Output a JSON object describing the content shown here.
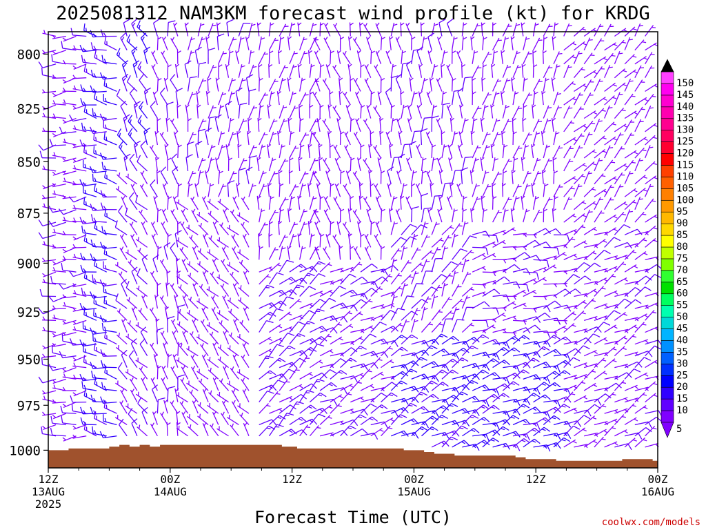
{
  "title": "2025081312 NAM3KM forecast wind profile (kt) for KRDG",
  "xlabel": "Forecast Time (UTC)",
  "watermark": "coolwx.com/models",
  "chart_data": {
    "type": "wind_barbs",
    "title": "2025081312 NAM3KM forecast wind profile (kt) for KRDG",
    "xlabel": "Forecast Time (UTC)",
    "ylabel": "",
    "x_range_hours": [
      0,
      60
    ],
    "y_axis": {
      "ticks": [
        800,
        825,
        850,
        875,
        900,
        925,
        950,
        975,
        1000
      ],
      "range": [
        790,
        1010
      ],
      "scale": "log-pressure"
    },
    "x_ticks": [
      {
        "hour": 0,
        "lines": [
          "12Z",
          "13AUG",
          "2025"
        ]
      },
      {
        "hour": 12,
        "lines": [
          "00Z",
          "14AUG"
        ]
      },
      {
        "hour": 24,
        "lines": [
          "12Z"
        ]
      },
      {
        "hour": 36,
        "lines": [
          "00Z",
          "15AUG"
        ]
      },
      {
        "hour": 48,
        "lines": [
          "12Z"
        ]
      },
      {
        "hour": 60,
        "lines": [
          "00Z",
          "16AUG"
        ]
      }
    ],
    "colorbar": {
      "unit": "kt",
      "levels": [
        5,
        10,
        15,
        20,
        25,
        30,
        35,
        40,
        45,
        50,
        55,
        60,
        65,
        70,
        75,
        80,
        85,
        90,
        95,
        100,
        105,
        110,
        115,
        120,
        125,
        130,
        135,
        140,
        145,
        150
      ],
      "colors": [
        "#8000ff",
        "#6000ff",
        "#3000ff",
        "#0000ff",
        "#0030ff",
        "#0060ff",
        "#0090ff",
        "#00b4ff",
        "#00d8d8",
        "#00ffb0",
        "#00ff60",
        "#00e000",
        "#30ff30",
        "#80ff00",
        "#c0ff00",
        "#ffff00",
        "#ffd800",
        "#ffb800",
        "#ff9900",
        "#ff8000",
        "#ff6000",
        "#ff4000",
        "#ff0000",
        "#ff0030",
        "#ff0060",
        "#ff0090",
        "#ff00b0",
        "#ff00d0",
        "#ff00f0",
        "#ff40ff"
      ],
      "extend": "both"
    },
    "terrain_color": "#a0522d",
    "surface_pressure": [
      {
        "hour": 0,
        "p": 1000
      },
      {
        "hour": 2,
        "p": 999
      },
      {
        "hour": 6,
        "p": 998
      },
      {
        "hour": 7,
        "p": 997
      },
      {
        "hour": 8,
        "p": 998
      },
      {
        "hour": 9,
        "p": 997
      },
      {
        "hour": 10,
        "p": 998
      },
      {
        "hour": 11,
        "p": 997
      },
      {
        "hour": 22,
        "p": 997
      },
      {
        "hour": 23,
        "p": 998
      },
      {
        "hour": 24.5,
        "p": 999
      },
      {
        "hour": 34,
        "p": 999
      },
      {
        "hour": 35,
        "p": 1000
      },
      {
        "hour": 37,
        "p": 1001
      },
      {
        "hour": 38,
        "p": 1002
      },
      {
        "hour": 40,
        "p": 1003
      },
      {
        "hour": 45,
        "p": 1003
      },
      {
        "hour": 46,
        "p": 1004
      },
      {
        "hour": 47,
        "p": 1005
      },
      {
        "hour": 49,
        "p": 1005
      },
      {
        "hour": 50,
        "p": 1006
      },
      {
        "hour": 56,
        "p": 1006
      },
      {
        "hour": 56.5,
        "p": 1005
      },
      {
        "hour": 59,
        "p": 1005
      },
      {
        "hour": 59.5,
        "p": 1006
      },
      {
        "hour": 60,
        "p": 1006
      }
    ],
    "wind_regimes": [
      {
        "hours": [
          0,
          4
        ],
        "p_range": [
          790,
          1000
        ],
        "dir_deg": 265,
        "speed_kt": 8
      },
      {
        "hours": [
          4,
          7
        ],
        "p_range": [
          790,
          1000
        ],
        "dir_deg": 280,
        "speed_kt": 17
      },
      {
        "hours": [
          7,
          10
        ],
        "p_range": [
          790,
          860
        ],
        "dir_deg": 330,
        "speed_kt": 14
      },
      {
        "hours": [
          7,
          10
        ],
        "p_range": [
          860,
          1000
        ],
        "dir_deg": 320,
        "speed_kt": 8
      },
      {
        "hours": [
          10,
          13
        ],
        "p_range": [
          790,
          1000
        ],
        "dir_deg": 345,
        "speed_kt": 8
      },
      {
        "hours": [
          13,
          20
        ],
        "p_range": [
          790,
          870
        ],
        "dir_deg": 5,
        "speed_kt": 8
      },
      {
        "hours": [
          13,
          20
        ],
        "p_range": [
          870,
          1000
        ],
        "dir_deg": 320,
        "speed_kt": 7
      },
      {
        "hours": [
          20,
          26
        ],
        "p_range": [
          790,
          900
        ],
        "dir_deg": 10,
        "speed_kt": 7
      },
      {
        "hours": [
          20,
          26
        ],
        "p_range": [
          900,
          1000
        ],
        "dir_deg": 50,
        "speed_kt": 12
      },
      {
        "hours": [
          26,
          33
        ],
        "p_range": [
          790,
          900
        ],
        "dir_deg": 345,
        "speed_kt": 7
      },
      {
        "hours": [
          26,
          33
        ],
        "p_range": [
          900,
          1000
        ],
        "dir_deg": 60,
        "speed_kt": 10
      },
      {
        "hours": [
          33,
          41
        ],
        "p_range": [
          790,
          880
        ],
        "dir_deg": 355,
        "speed_kt": 8
      },
      {
        "hours": [
          33,
          41
        ],
        "p_range": [
          880,
          940
        ],
        "dir_deg": 30,
        "speed_kt": 8
      },
      {
        "hours": [
          33,
          41
        ],
        "p_range": [
          940,
          1000
        ],
        "dir_deg": 60,
        "speed_kt": 17
      },
      {
        "hours": [
          41,
          50
        ],
        "p_range": [
          790,
          880
        ],
        "dir_deg": 10,
        "speed_kt": 7
      },
      {
        "hours": [
          41,
          50
        ],
        "p_range": [
          880,
          940
        ],
        "dir_deg": 75,
        "speed_kt": 9
      },
      {
        "hours": [
          41,
          50
        ],
        "p_range": [
          940,
          1006
        ],
        "dir_deg": 65,
        "speed_kt": 17
      },
      {
        "hours": [
          50,
          60
        ],
        "p_range": [
          790,
          880
        ],
        "dir_deg": 40,
        "speed_kt": 7
      },
      {
        "hours": [
          50,
          60
        ],
        "p_range": [
          880,
          1006
        ],
        "dir_deg": 60,
        "speed_kt": 8
      }
    ]
  }
}
